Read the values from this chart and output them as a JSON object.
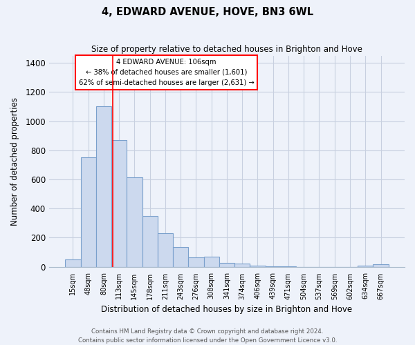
{
  "title": "4, EDWARD AVENUE, HOVE, BN3 6WL",
  "subtitle": "Size of property relative to detached houses in Brighton and Hove",
  "xlabel": "Distribution of detached houses by size in Brighton and Hove",
  "ylabel": "Number of detached properties",
  "bar_labels": [
    "15sqm",
    "48sqm",
    "80sqm",
    "113sqm",
    "145sqm",
    "178sqm",
    "211sqm",
    "243sqm",
    "276sqm",
    "308sqm",
    "341sqm",
    "374sqm",
    "406sqm",
    "439sqm",
    "471sqm",
    "504sqm",
    "537sqm",
    "569sqm",
    "602sqm",
    "634sqm",
    "667sqm"
  ],
  "bar_values": [
    50,
    750,
    1100,
    870,
    615,
    350,
    230,
    135,
    65,
    70,
    25,
    22,
    10,
    5,
    2,
    0,
    0,
    0,
    0,
    10,
    15
  ],
  "bar_color": "#ccd9ee",
  "bar_edge_color": "#7aa0cc",
  "vline_x": 2.575,
  "annotation_text_line1": "4 EDWARD AVENUE: 106sqm",
  "annotation_text_line2": "← 38% of detached houses are smaller (1,601)",
  "annotation_text_line3": "62% of semi-detached houses are larger (2,631) →",
  "ylim": [
    0,
    1450
  ],
  "yticks": [
    0,
    200,
    400,
    600,
    800,
    1000,
    1200,
    1400
  ],
  "footer1": "Contains HM Land Registry data © Crown copyright and database right 2024.",
  "footer2": "Contains public sector information licensed under the Open Government Licence v3.0.",
  "background_color": "#eef2fa",
  "grid_color": "#c8d0e0",
  "spine_color": "#aabbcc"
}
